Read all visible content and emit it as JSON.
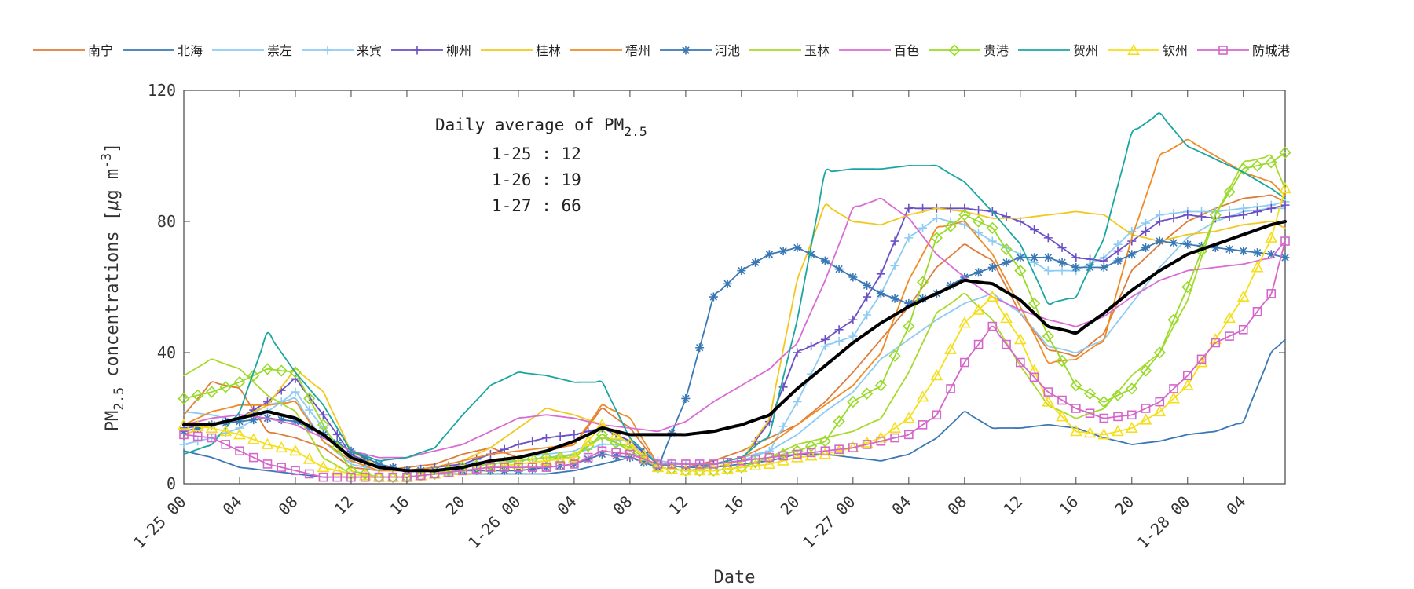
{
  "chart_data": {
    "type": "line",
    "title": "",
    "xlabel": "Date",
    "ylabel": "PM2.5 concentrations [μg m-3]",
    "ylabel_parts": {
      "main": "PM",
      "sub": "2.5",
      "rest": "  concentrations [",
      "mu": "μ",
      "unit": "g m",
      "sup": "-3",
      "close": "]"
    },
    "xlim": [
      0,
      79
    ],
    "ylim": [
      0,
      120
    ],
    "x_tick_values": [
      0,
      4,
      8,
      12,
      16,
      20,
      24,
      28,
      32,
      36,
      40,
      44,
      48,
      52,
      56,
      60,
      64,
      68,
      72,
      76
    ],
    "x_tick_labels": [
      "1-25 00",
      "04",
      "08",
      "12",
      "16",
      "20",
      "1-26 00",
      "04",
      "08",
      "12",
      "16",
      "20",
      "1-27 00",
      "04",
      "08",
      "12",
      "16",
      "20",
      "1-28 00",
      "04"
    ],
    "y_tick_values": [
      0,
      40,
      80,
      120
    ],
    "y_tick_labels": [
      "0",
      "40",
      "80",
      "120"
    ],
    "grid": false,
    "legend_position": "top",
    "annotation": {
      "title_main": "Daily average of PM",
      "title_sub": "2.5",
      "lines": [
        "1-25 : 12",
        "1-26 : 19",
        "1-27 : 66"
      ]
    },
    "anchor_x": [
      0,
      2,
      4,
      6,
      8,
      10,
      12,
      14,
      16,
      18,
      20,
      22,
      24,
      26,
      28,
      30,
      32,
      34,
      36,
      38,
      40,
      42,
      44,
      46,
      48,
      50,
      52,
      54,
      56,
      58,
      60,
      62,
      64,
      66,
      68,
      70,
      72,
      74,
      76,
      78,
      79
    ],
    "series": [
      {
        "name": "南宁",
        "color": "#e07b39",
        "marker": "none",
        "values": [
          21,
          31,
          29,
          16,
          14,
          11,
          5,
          4,
          5,
          6,
          9,
          11,
          8,
          10,
          12,
          23,
          17,
          6,
          5,
          7,
          10,
          14,
          18,
          25,
          34,
          44,
          54,
          66,
          73,
          68,
          52,
          41,
          39,
          46,
          65,
          73,
          80,
          84,
          87,
          88,
          86
        ]
      },
      {
        "name": "北海",
        "color": "#3a78b5",
        "marker": "none",
        "values": [
          10,
          8,
          5,
          4,
          3,
          2,
          2,
          2,
          2,
          3,
          3,
          3,
          3,
          3,
          4,
          6,
          8,
          6,
          5,
          5,
          6,
          7,
          9,
          9,
          8,
          7,
          9,
          14,
          22,
          17,
          17,
          18,
          17,
          14,
          12,
          13,
          15,
          16,
          19,
          40,
          44
        ]
      },
      {
        "name": "崇左",
        "color": "#8ecbf2",
        "marker": "none",
        "values": [
          22,
          21,
          19,
          24,
          26,
          13,
          6,
          4,
          4,
          5,
          6,
          7,
          8,
          9,
          10,
          14,
          13,
          7,
          6,
          6,
          8,
          10,
          15,
          22,
          28,
          38,
          44,
          50,
          55,
          58,
          52,
          42,
          40,
          44,
          55,
          66,
          75,
          80,
          83,
          84,
          84
        ]
      },
      {
        "name": "来宾",
        "color": "#8ecbf2",
        "marker": "plus",
        "values": [
          12,
          14,
          17,
          22,
          28,
          17,
          7,
          4,
          4,
          5,
          6,
          7,
          7,
          8,
          9,
          12,
          12,
          7,
          6,
          6,
          7,
          10,
          25,
          42,
          45,
          58,
          75,
          81,
          79,
          74,
          70,
          65,
          65,
          69,
          77,
          82,
          83,
          83,
          84,
          85,
          86
        ]
      },
      {
        "name": "柳州",
        "color": "#6a4fc6",
        "marker": "plus",
        "values": [
          17,
          18,
          20,
          25,
          32,
          21,
          9,
          5,
          4,
          5,
          6,
          9,
          12,
          14,
          15,
          17,
          13,
          6,
          5,
          6,
          7,
          19,
          40,
          44,
          50,
          64,
          84,
          84,
          84,
          83,
          80,
          75,
          69,
          68,
          74,
          80,
          82,
          81,
          82,
          84,
          85
        ]
      },
      {
        "name": "桂林",
        "color": "#f2c81c",
        "marker": "none",
        "values": [
          15,
          18,
          20,
          24,
          35,
          28,
          10,
          5,
          4,
          5,
          7,
          11,
          17,
          23,
          21,
          18,
          12,
          5,
          4,
          5,
          7,
          20,
          62,
          85,
          80,
          79,
          82,
          84,
          83,
          81,
          81,
          82,
          83,
          82,
          76,
          74,
          76,
          77,
          79,
          80,
          78
        ]
      },
      {
        "name": "梧州",
        "color": "#f08a24",
        "marker": "none",
        "values": [
          18,
          22,
          24,
          24,
          25,
          13,
          7,
          4,
          4,
          5,
          7,
          9,
          10,
          11,
          12,
          24,
          20,
          6,
          5,
          6,
          8,
          12,
          18,
          24,
          30,
          40,
          62,
          78,
          80,
          70,
          54,
          37,
          38,
          44,
          75,
          100,
          105,
          100,
          95,
          92,
          88
        ]
      },
      {
        "name": "河池",
        "color": "#3a78b5",
        "marker": "star",
        "values": [
          16,
          18,
          19,
          20,
          19,
          15,
          10,
          6,
          4,
          4,
          4,
          4,
          4,
          5,
          6,
          9,
          8,
          5,
          26,
          57,
          65,
          70,
          72,
          68,
          63,
          58,
          55,
          58,
          63,
          66,
          69,
          69,
          66,
          66,
          70,
          74,
          73,
          72,
          71,
          70,
          69
        ]
      },
      {
        "name": "玉林",
        "color": "#a8d92e",
        "marker": "none",
        "values": [
          33,
          38,
          35,
          27,
          22,
          8,
          3,
          2,
          2,
          3,
          4,
          5,
          6,
          7,
          9,
          14,
          11,
          5,
          4,
          4,
          5,
          8,
          12,
          14,
          16,
          20,
          34,
          52,
          58,
          50,
          36,
          24,
          20,
          23,
          33,
          40,
          56,
          82,
          98,
          100,
          90
        ]
      },
      {
        "name": "百色",
        "color": "#d96bd4",
        "marker": "none",
        "values": [
          18,
          20,
          21,
          20,
          18,
          14,
          10,
          8,
          8,
          10,
          12,
          16,
          20,
          21,
          20,
          18,
          17,
          16,
          19,
          25,
          30,
          35,
          43,
          62,
          84,
          87,
          81,
          70,
          63,
          57,
          53,
          50,
          48,
          51,
          57,
          62,
          65,
          66,
          67,
          69,
          74
        ]
      },
      {
        "name": "贵港",
        "color": "#97db28",
        "marker": "diamond",
        "values": [
          26,
          28,
          31,
          35,
          34,
          18,
          4,
          2,
          2,
          3,
          5,
          6,
          7,
          8,
          8,
          15,
          10,
          5,
          4,
          4,
          5,
          8,
          10,
          13,
          25,
          30,
          48,
          75,
          82,
          78,
          65,
          45,
          30,
          25,
          29,
          40,
          60,
          82,
          96,
          98,
          101
        ]
      },
      {
        "name": "贺州",
        "color": "#1aa6a0",
        "marker": "none",
        "values": [
          9,
          12,
          22,
          46,
          34,
          24,
          10,
          7,
          8,
          11,
          21,
          30,
          34,
          33,
          31,
          31,
          14,
          6,
          5,
          6,
          8,
          15,
          50,
          95,
          96,
          96,
          97,
          97,
          92,
          83,
          73,
          55,
          57,
          75,
          107,
          113,
          103,
          99,
          95,
          90,
          87
        ]
      },
      {
        "name": "钦州",
        "color": "#f5df1a",
        "marker": "triangle",
        "values": [
          18,
          17,
          15,
          12,
          10,
          5,
          3,
          2,
          2,
          3,
          4,
          5,
          6,
          7,
          8,
          18,
          12,
          5,
          4,
          4,
          5,
          6,
          8,
          9,
          11,
          14,
          20,
          33,
          49,
          57,
          44,
          25,
          16,
          15,
          17,
          22,
          30,
          44,
          57,
          75,
          90
        ]
      },
      {
        "name": "防城港",
        "color": "#d467c9",
        "marker": "square",
        "values": [
          15,
          14,
          10,
          6,
          4,
          2,
          2,
          2,
          2,
          3,
          4,
          5,
          5,
          5,
          6,
          10,
          9,
          6,
          6,
          6,
          7,
          8,
          9,
          10,
          11,
          13,
          15,
          21,
          37,
          48,
          37,
          28,
          23,
          20,
          21,
          25,
          33,
          43,
          47,
          58,
          74
        ]
      },
      {
        "name": "",
        "color": "#000000",
        "marker": "none",
        "is_mean": true,
        "values": [
          18,
          18,
          20,
          22,
          20,
          15,
          8,
          5,
          4,
          4,
          5,
          7,
          8,
          10,
          13,
          17,
          15,
          15,
          15,
          16,
          18,
          21,
          29,
          36,
          43,
          49,
          54,
          58,
          62,
          61,
          56,
          48,
          46,
          52,
          59,
          65,
          70,
          73,
          76,
          79,
          80
        ]
      }
    ]
  }
}
